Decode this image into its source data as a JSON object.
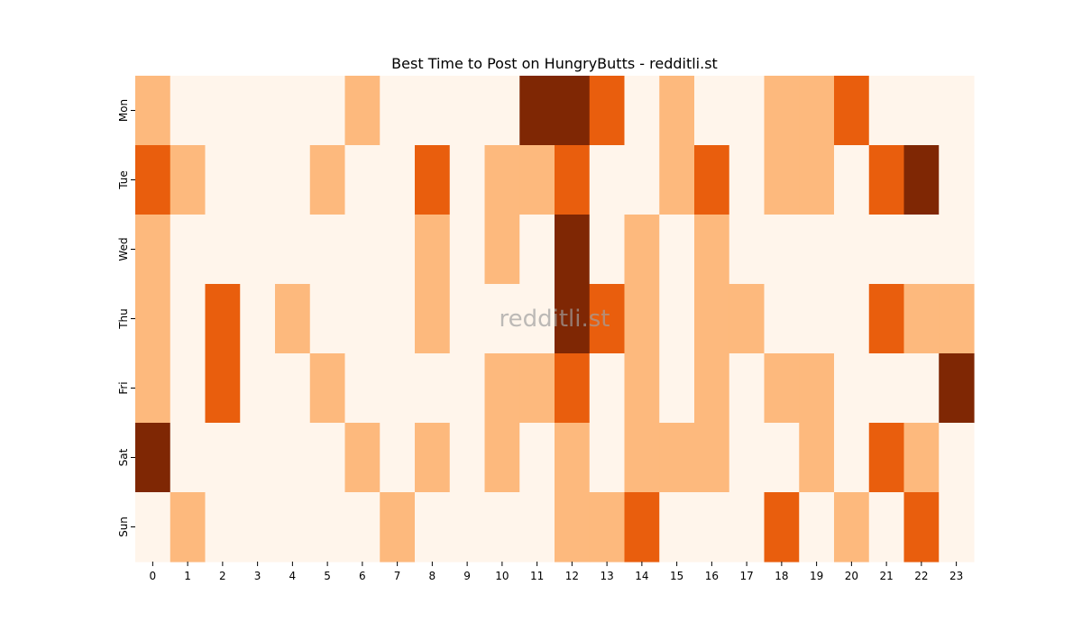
{
  "chart_data": {
    "type": "heatmap",
    "title": "Best Time to Post on HungryButts - redditli.st",
    "watermark": "redditli.st",
    "xlabel": "",
    "ylabel": "",
    "x_tick_labels": [
      "0",
      "1",
      "2",
      "3",
      "4",
      "5",
      "6",
      "7",
      "8",
      "9",
      "10",
      "11",
      "12",
      "13",
      "14",
      "15",
      "16",
      "17",
      "18",
      "19",
      "20",
      "21",
      "22",
      "23"
    ],
    "y_tick_labels": [
      "Mon",
      "Tue",
      "Wed",
      "Thu",
      "Fri",
      "Sat",
      "Sun"
    ],
    "value_range": [
      0,
      3
    ],
    "colorscale": [
      "#fff5eb",
      "#fdb97d",
      "#e95e0d",
      "#7f2704"
    ],
    "colorbar": false,
    "grid": false,
    "values": [
      [
        1,
        0,
        0,
        0,
        0,
        0,
        1,
        0,
        0,
        0,
        0,
        3,
        3,
        2,
        0,
        1,
        0,
        0,
        1,
        1,
        2,
        0,
        0,
        0
      ],
      [
        2,
        1,
        0,
        0,
        0,
        1,
        0,
        0,
        2,
        0,
        1,
        1,
        2,
        0,
        0,
        1,
        2,
        0,
        1,
        1,
        0,
        2,
        3,
        0
      ],
      [
        1,
        0,
        0,
        0,
        0,
        0,
        0,
        0,
        1,
        0,
        1,
        0,
        3,
        0,
        1,
        0,
        1,
        0,
        0,
        0,
        0,
        0,
        0,
        0
      ],
      [
        1,
        0,
        2,
        0,
        1,
        0,
        0,
        0,
        1,
        0,
        0,
        0,
        3,
        2,
        1,
        0,
        1,
        1,
        0,
        0,
        0,
        2,
        1,
        1
      ],
      [
        1,
        0,
        2,
        0,
        0,
        1,
        0,
        0,
        0,
        0,
        1,
        1,
        2,
        0,
        1,
        0,
        1,
        0,
        1,
        1,
        0,
        0,
        0,
        3
      ],
      [
        3,
        0,
        0,
        0,
        0,
        0,
        1,
        0,
        1,
        0,
        1,
        0,
        1,
        0,
        1,
        1,
        1,
        0,
        0,
        1,
        0,
        2,
        1,
        0
      ],
      [
        0,
        1,
        0,
        0,
        0,
        0,
        0,
        1,
        0,
        0,
        0,
        0,
        1,
        1,
        2,
        0,
        0,
        0,
        2,
        0,
        1,
        0,
        2,
        0
      ]
    ]
  }
}
